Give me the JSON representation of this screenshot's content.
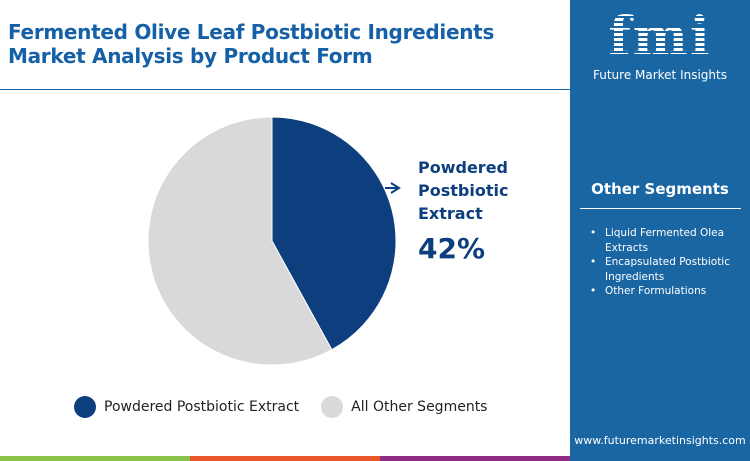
{
  "title": "Fermented Olive Leaf Postbiotic Ingredients Market Analysis by Product Form",
  "chart_data": {
    "type": "pie",
    "slices": [
      {
        "name": "Powdered Postbiotic Extract",
        "value": 42,
        "color": "#0d3f7e"
      },
      {
        "name": "All Other Segments",
        "value": 58,
        "color": "#d9d9d9"
      }
    ],
    "callout": {
      "label": "Powdered Postbiotic Extract",
      "value_label": "42%"
    },
    "legend": [
      "Powdered Postbiotic Extract",
      "All Other Segments"
    ],
    "legend_position": "bottom"
  },
  "callout_lines": [
    "Powdered",
    "Postbiotic",
    "Extract"
  ],
  "sidebar": {
    "logo_text": "fmi",
    "logo_sub": "Future Market Insights",
    "other_title": "Other Segments",
    "other_items": [
      "Liquid Fermented Olea Extracts",
      "Encapsulated Postbiotic Ingredients",
      "Other Formulations"
    ],
    "url": "www.futuremarketinsights.com"
  },
  "colors": {
    "brand": "#1560a6",
    "sidebar": "#1a66a3",
    "bar": [
      "#8bc34a",
      "#e8572a",
      "#8e2c86"
    ]
  }
}
